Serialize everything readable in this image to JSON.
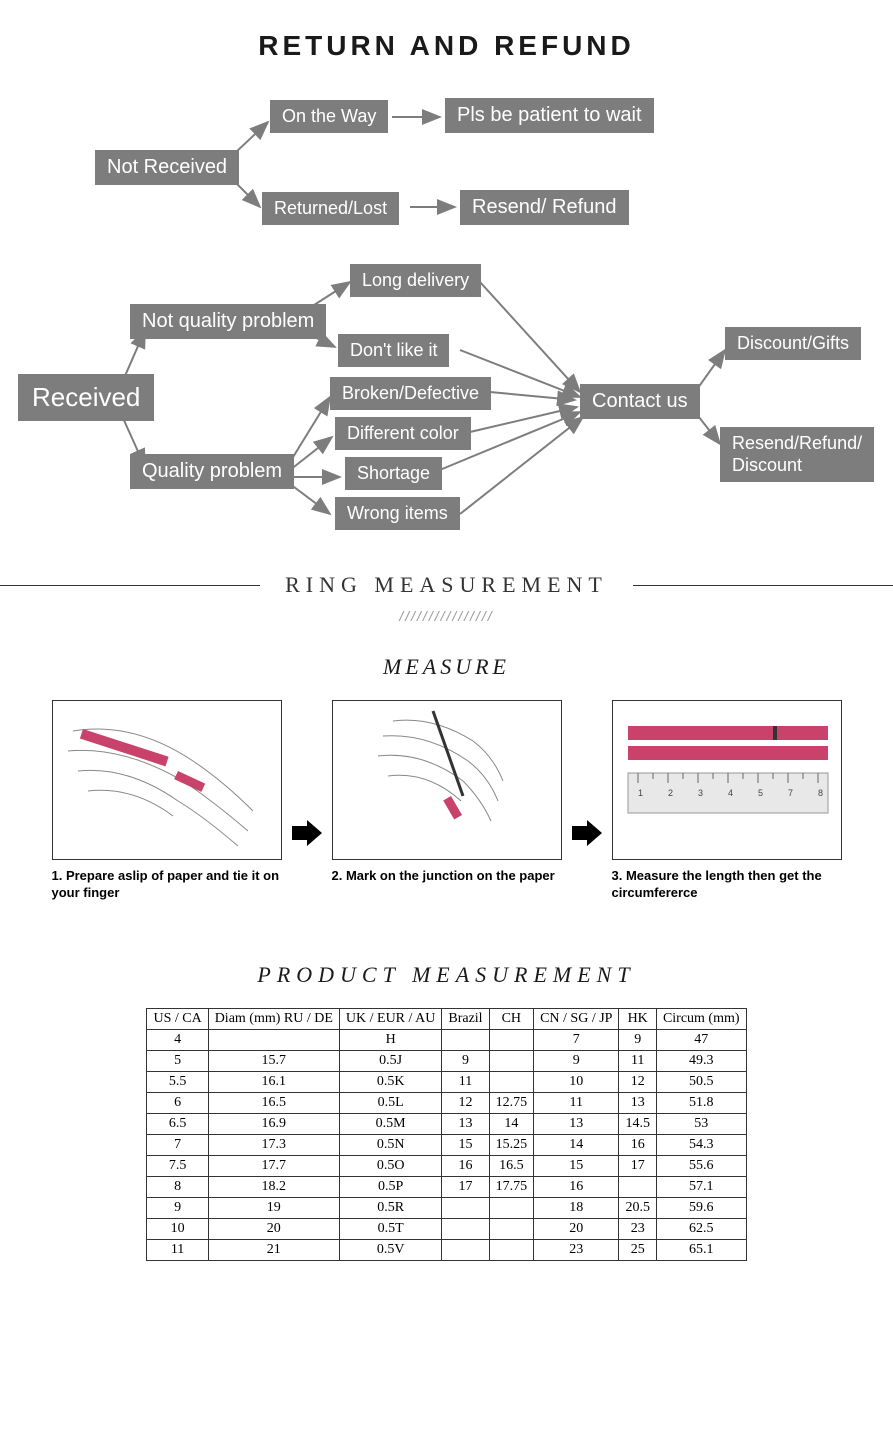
{
  "colors": {
    "node_bg": "#7d7d7d",
    "node_text": "#ffffff",
    "text_dark": "#1a1a1a",
    "border": "#333333",
    "accent_red": "#c8426b",
    "ruler_gray": "#cccccc"
  },
  "main_title": "RETURN AND REFUND",
  "flow1": {
    "not_received": "Not Received",
    "on_the_way": "On the Way",
    "returned_lost": "Returned/Lost",
    "pls_wait": "Pls be patient to wait",
    "resend_refund": "Resend/ Refund"
  },
  "flow2": {
    "received": "Received",
    "not_quality": "Not quality problem",
    "quality": "Quality problem",
    "long_delivery": "Long delivery",
    "dont_like": "Don't like it",
    "broken": "Broken/Defective",
    "diff_color": "Different color",
    "shortage": "Shortage",
    "wrong_items": "Wrong items",
    "contact_us": "Contact us",
    "discount_gifts": "Discount/Gifts",
    "resend_refund_disc": "Resend/Refund/\nDiscount"
  },
  "ring_section_title": "RING MEASUREMENT",
  "measure_heading": "MEASURE",
  "hatch_pattern": "////////////////",
  "steps": {
    "s1_caption": "1. Prepare aslip of paper and tie it on your finger",
    "s2_caption": "2. Mark on the junction on the paper",
    "s3_caption": "3. Measure the length then get the circumfererce"
  },
  "product_heading": "PRODUCT MEASUREMENT",
  "table": {
    "headers": [
      "US / CA",
      "Diam (mm) RU / DE",
      "UK / EUR / AU",
      "Brazil",
      "CH",
      "CN / SG / JP",
      "HK",
      "Circum (mm)"
    ],
    "rows": [
      [
        "4",
        "",
        "H",
        "",
        "",
        "7",
        "9",
        "47"
      ],
      [
        "5",
        "15.7",
        "0.5J",
        "9",
        "",
        "9",
        "11",
        "49.3"
      ],
      [
        "5.5",
        "16.1",
        "0.5K",
        "11",
        "",
        "10",
        "12",
        "50.5"
      ],
      [
        "6",
        "16.5",
        "0.5L",
        "12",
        "12.75",
        "11",
        "13",
        "51.8"
      ],
      [
        "6.5",
        "16.9",
        "0.5M",
        "13",
        "14",
        "13",
        "14.5",
        "53"
      ],
      [
        "7",
        "17.3",
        "0.5N",
        "15",
        "15.25",
        "14",
        "16",
        "54.3"
      ],
      [
        "7.5",
        "17.7",
        "0.5O",
        "16",
        "16.5",
        "15",
        "17",
        "55.6"
      ],
      [
        "8",
        "18.2",
        "0.5P",
        "17",
        "17.75",
        "16",
        "",
        "57.1"
      ],
      [
        "9",
        "19",
        "0.5R",
        "",
        "",
        "18",
        "20.5",
        "59.6"
      ],
      [
        "10",
        "20",
        "0.5T",
        "",
        "",
        "20",
        "23",
        "62.5"
      ],
      [
        "11",
        "21",
        "0.5V",
        "",
        "",
        "23",
        "25",
        "65.1"
      ]
    ]
  }
}
